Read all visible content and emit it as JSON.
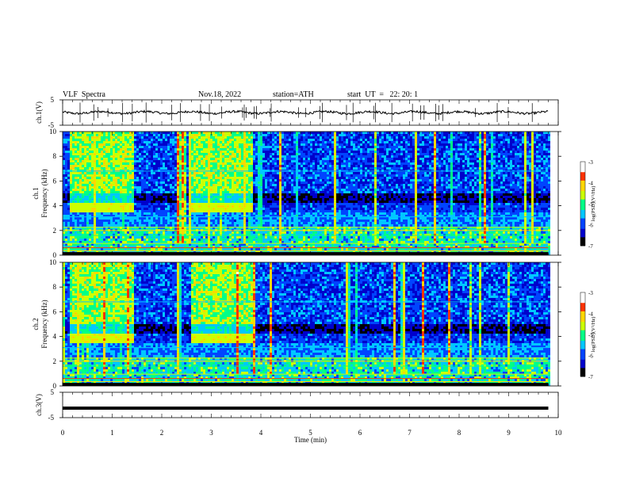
{
  "header": {
    "title": "VLF  Spectra",
    "date": "Nov.18, 2022",
    "station": "station=ATH",
    "start": "start  UT  =   22: 20: 1"
  },
  "chart_data": [
    {
      "type": "line",
      "name": "ch1-waveform",
      "ylabel": "ch.1(V)",
      "ylim": [
        -5,
        5
      ],
      "y_ticks": [
        "5",
        "-5"
      ],
      "xlim": [
        0,
        10
      ]
    },
    {
      "type": "heatmap",
      "name": "ch1-spectrogram",
      "ylabel": "ch.1\nFrequency  (kHz)",
      "ylabel_channel": "ch.1",
      "ylabel_axis": "Frequency  (kHz)",
      "ylim": [
        0,
        10
      ],
      "y_ticks": [
        "0",
        "2",
        "4",
        "6",
        "8",
        "10"
      ],
      "xlim": [
        0,
        10
      ],
      "colorbar": {
        "label": "log(PSD)(V²/Hz)",
        "range": [
          -7,
          -3
        ],
        "ticks": [
          "-3",
          "-4",
          "-5",
          "-6",
          "-7"
        ]
      },
      "bright_intervals_min": [
        [
          0.1,
          1.4
        ],
        [
          2.55,
          3.8
        ]
      ],
      "data_end_min": 9.8
    },
    {
      "type": "heatmap",
      "name": "ch2-spectrogram",
      "ylabel_channel": "ch.2",
      "ylabel_axis": "Frequency  (kHz)",
      "ylim": [
        0,
        10
      ],
      "y_ticks": [
        "0",
        "2",
        "4",
        "6",
        "8",
        "10"
      ],
      "xlim": [
        0,
        10
      ],
      "colorbar": {
        "label": "log(PSD)(V²/Hz)",
        "range": [
          -7,
          -3
        ],
        "ticks": [
          "-3",
          "-4",
          "-5",
          "-6",
          "-7"
        ]
      },
      "bright_intervals_min": [
        [
          0.1,
          1.4
        ],
        [
          2.55,
          3.8
        ]
      ],
      "data_end_min": 9.8
    },
    {
      "type": "line",
      "name": "ch3-waveform",
      "ylabel": "ch.3(V)",
      "ylim": [
        -5,
        5
      ],
      "y_ticks": [
        "5",
        "-5"
      ],
      "level_V": 0,
      "xlim": [
        0,
        10
      ]
    }
  ],
  "x_axis": {
    "label": "Time  (min)",
    "ticks": [
      "0",
      "1",
      "2",
      "3",
      "4",
      "5",
      "6",
      "7",
      "8",
      "9",
      "10"
    ],
    "range": [
      0,
      10
    ]
  },
  "colormap": [
    "#000000",
    "#0000cc",
    "#0044ff",
    "#00c8ff",
    "#00ff88",
    "#ccff00",
    "#ffd700",
    "#ff3300",
    "#ffffff"
  ]
}
